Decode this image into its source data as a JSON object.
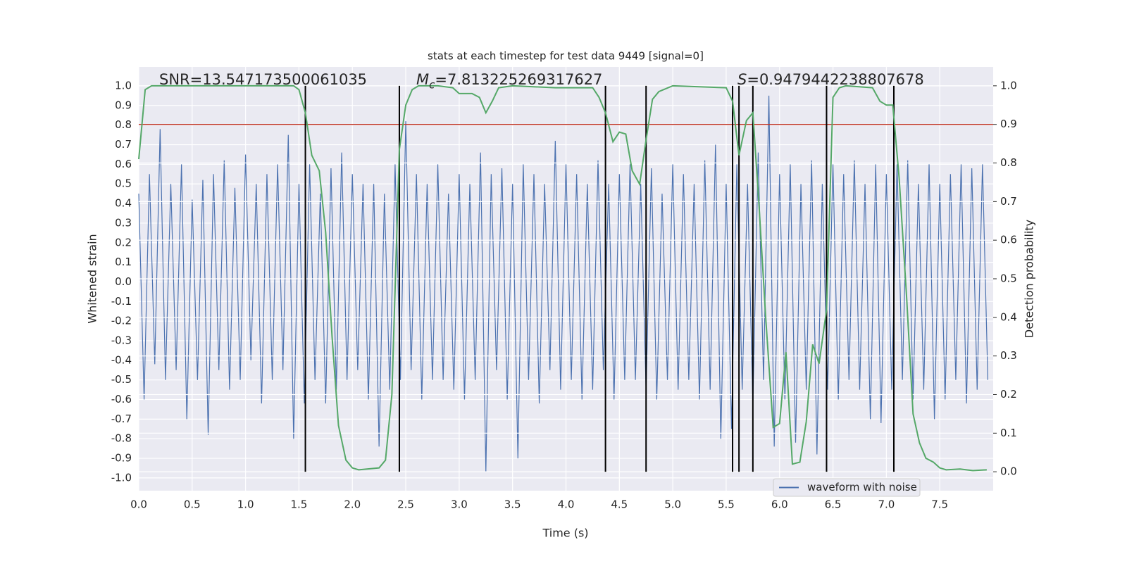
{
  "chart_data": {
    "type": "line",
    "title": "stats at each timestep for test data 9449 [signal=0]",
    "xlabel": "Time (s)",
    "ylabel": "Whitened strain",
    "y2label": "Detection probability",
    "xlim": [
      0,
      8.0
    ],
    "ylim": [
      -1.065,
      1.097
    ],
    "y2lim": [
      -0.049,
      1.049
    ],
    "grid": true,
    "legend": "lower right",
    "xticks": [
      {
        "value": 0,
        "label": "0.0"
      },
      0.5,
      {
        "value": 1,
        "label": "1.0"
      },
      1.5,
      {
        "value": 2,
        "label": "2.0"
      },
      2.5,
      {
        "value": 3,
        "label": "3.0"
      },
      3.5,
      {
        "value": 4,
        "label": "4.0"
      },
      4.5,
      {
        "value": 5,
        "label": "5.0"
      },
      5.5,
      {
        "value": 6,
        "label": "6.0"
      },
      6.5,
      {
        "value": 7,
        "label": "7.0"
      },
      7.5
    ],
    "yticks": [
      {
        "value": -1,
        "label": "-1.0"
      },
      -0.9,
      -0.8,
      -0.7,
      -0.6,
      -0.5,
      -0.4,
      -0.3,
      -0.2,
      -0.1,
      {
        "value": 0,
        "label": "0.0"
      },
      0.1,
      0.2,
      0.3,
      0.4,
      0.5,
      0.6,
      0.7,
      0.8,
      0.9,
      {
        "value": 1,
        "label": "1.0"
      }
    ],
    "y2ticks": [
      {
        "value": 0,
        "label": "0.0"
      },
      0.1,
      0.2,
      0.3,
      0.4,
      0.5,
      0.6,
      0.7,
      0.8,
      0.9,
      {
        "value": 1,
        "label": "1.0"
      }
    ],
    "series": [
      {
        "name": "waveform with noise",
        "color": "#4c72b0",
        "x": [
          0,
          0.05,
          0.1,
          0.15,
          0.2,
          0.25,
          0.3,
          0.35,
          0.4,
          0.45,
          0.5,
          0.55,
          0.6,
          0.65,
          0.7,
          0.75,
          0.8,
          0.85,
          0.9,
          0.95,
          1.0,
          1.05,
          1.1,
          1.15,
          1.2,
          1.25,
          1.3,
          1.35,
          1.4,
          1.45,
          1.5,
          1.55,
          1.6,
          1.65,
          1.7,
          1.75,
          1.8,
          1.85,
          1.9,
          1.95,
          2.0,
          2.05,
          2.1,
          2.15,
          2.2,
          2.25,
          2.3,
          2.35,
          2.4,
          2.45,
          2.5,
          2.55,
          2.6,
          2.65,
          2.7,
          2.75,
          2.8,
          2.85,
          2.9,
          2.95,
          3.0,
          3.05,
          3.1,
          3.15,
          3.2,
          3.25,
          3.3,
          3.35,
          3.4,
          3.45,
          3.5,
          3.55,
          3.6,
          3.65,
          3.7,
          3.75,
          3.8,
          3.85,
          3.9,
          3.95,
          4.0,
          4.05,
          4.1,
          4.15,
          4.2,
          4.25,
          4.3,
          4.35,
          4.4,
          4.45,
          4.5,
          4.55,
          4.6,
          4.65,
          4.7,
          4.75,
          4.8,
          4.85,
          4.9,
          4.95,
          5.0,
          5.05,
          5.1,
          5.15,
          5.2,
          5.25,
          5.3,
          5.35,
          5.4,
          5.45,
          5.5,
          5.55,
          5.6,
          5.65,
          5.7,
          5.75,
          5.8,
          5.85,
          5.9,
          5.95,
          6.0,
          6.05,
          6.1,
          6.15,
          6.2,
          6.25,
          6.3,
          6.35,
          6.4,
          6.45,
          6.5,
          6.55,
          6.6,
          6.65,
          6.7,
          6.75,
          6.8,
          6.85,
          6.9,
          6.95,
          7.0,
          7.05,
          7.1,
          7.15,
          7.2,
          7.25,
          7.3,
          7.35,
          7.4,
          7.45,
          7.5,
          7.55,
          7.6,
          7.65,
          7.7,
          7.75,
          7.8,
          7.85,
          7.9,
          7.95
        ],
        "values": [
          0.45,
          -0.6,
          0.55,
          -0.42,
          0.78,
          -0.5,
          0.5,
          -0.45,
          0.6,
          -0.7,
          0.42,
          -0.5,
          0.52,
          -0.78,
          0.55,
          -0.45,
          0.62,
          -0.55,
          0.48,
          -0.5,
          0.65,
          -0.4,
          0.5,
          -0.62,
          0.55,
          -0.5,
          0.6,
          -0.45,
          0.75,
          -0.8,
          0.5,
          -0.62,
          0.6,
          -0.5,
          0.45,
          -0.62,
          0.58,
          -0.55,
          0.66,
          -0.5,
          0.55,
          -0.45,
          0.5,
          -0.6,
          0.5,
          -0.84,
          0.45,
          -0.55,
          0.6,
          -0.5,
          0.82,
          -0.45,
          0.55,
          -0.6,
          0.5,
          -0.5,
          0.6,
          -0.5,
          0.45,
          -0.55,
          0.55,
          -0.6,
          0.5,
          -0.5,
          0.66,
          -0.97,
          0.55,
          -0.45,
          0.58,
          -0.6,
          0.5,
          -0.9,
          0.6,
          -0.5,
          0.55,
          -0.62,
          0.5,
          -0.45,
          0.72,
          -0.55,
          0.6,
          -0.5,
          0.55,
          -0.6,
          0.5,
          -0.55,
          0.62,
          -0.45,
          0.5,
          -0.6,
          0.55,
          -0.5,
          0.6,
          -0.5,
          0.5,
          -0.55,
          0.58,
          -0.6,
          0.45,
          -0.5,
          0.6,
          -0.55,
          0.55,
          -0.5,
          0.5,
          -0.6,
          0.62,
          -0.55,
          0.7,
          -0.8,
          0.5,
          -0.75,
          0.6,
          -0.55,
          0.5,
          -0.62,
          0.66,
          -0.5,
          0.95,
          -0.84,
          0.55,
          -0.6,
          0.6,
          -0.82,
          0.5,
          -0.55,
          0.62,
          -0.88,
          0.5,
          -0.55,
          0.6,
          -0.6,
          0.55,
          -0.5,
          0.62,
          -0.55,
          0.5,
          -0.7,
          0.6,
          -0.72,
          0.55,
          -0.55,
          0.6,
          -0.5,
          0.62,
          -0.6,
          0.5,
          -0.55,
          0.6,
          -0.7,
          0.5,
          -0.6,
          0.55,
          -0.5,
          0.6,
          -0.62,
          0.58,
          -0.55,
          0.6,
          -0.5
        ]
      },
      {
        "color": "#55a868",
        "axis": "y2",
        "x": [
          0,
          0.06,
          0.12,
          0.25,
          0.5,
          1.0,
          1.45,
          1.5,
          1.56,
          1.62,
          1.69,
          1.75,
          1.81,
          1.87,
          1.94,
          2.0,
          2.06,
          2.25,
          2.31,
          2.37,
          2.44,
          2.5,
          2.56,
          2.62,
          2.8,
          2.94,
          3.0,
          3.12,
          3.19,
          3.25,
          3.31,
          3.37,
          3.5,
          3.9,
          4.25,
          4.31,
          4.37,
          4.44,
          4.5,
          4.56,
          4.62,
          4.69,
          4.75,
          4.81,
          4.87,
          5.0,
          5.5,
          5.56,
          5.62,
          5.69,
          5.75,
          5.81,
          5.87,
          5.94,
          6.0,
          6.06,
          6.12,
          6.19,
          6.25,
          6.31,
          6.37,
          6.44,
          6.5,
          6.56,
          6.62,
          6.87,
          6.94,
          7.0,
          7.06,
          7.12,
          7.19,
          7.25,
          7.31,
          7.37,
          7.44,
          7.5,
          7.56,
          7.69,
          7.81,
          7.94
        ],
        "values": [
          0.81,
          0.99,
          1.0,
          1.0,
          1.0,
          1.0,
          1.0,
          0.99,
          0.93,
          0.82,
          0.78,
          0.62,
          0.35,
          0.12,
          0.03,
          0.01,
          0.005,
          0.01,
          0.03,
          0.2,
          0.835,
          0.95,
          0.99,
          1.0,
          1.0,
          0.995,
          0.98,
          0.98,
          0.97,
          0.93,
          0.96,
          0.995,
          1.0,
          0.995,
          0.995,
          0.97,
          0.93,
          0.855,
          0.88,
          0.875,
          0.78,
          0.745,
          0.86,
          0.965,
          0.985,
          1.0,
          0.995,
          0.96,
          0.82,
          0.91,
          0.93,
          0.68,
          0.4,
          0.115,
          0.125,
          0.31,
          0.02,
          0.025,
          0.13,
          0.33,
          0.28,
          0.42,
          0.97,
          0.995,
          1.0,
          0.995,
          0.96,
          0.95,
          0.95,
          0.76,
          0.45,
          0.15,
          0.075,
          0.035,
          0.025,
          0.01,
          0.005,
          0.007,
          0.003,
          0.005
        ]
      }
    ],
    "threshold": {
      "value": 0.9,
      "axis": "y2",
      "color": "#c0392b"
    },
    "vlines": {
      "x": [
        1.56,
        2.44,
        4.37,
        4.75,
        5.56,
        5.62,
        5.75,
        6.44,
        7.07
      ],
      "color": "#000000"
    },
    "annotations": [
      {
        "text": "SNR=13.547173500061035"
      },
      {
        "symbol": "M",
        "subscript": "c",
        "text": "=7.813225269317627"
      },
      {
        "symbol": "S",
        "text": "=0.9479442238807678"
      }
    ]
  }
}
